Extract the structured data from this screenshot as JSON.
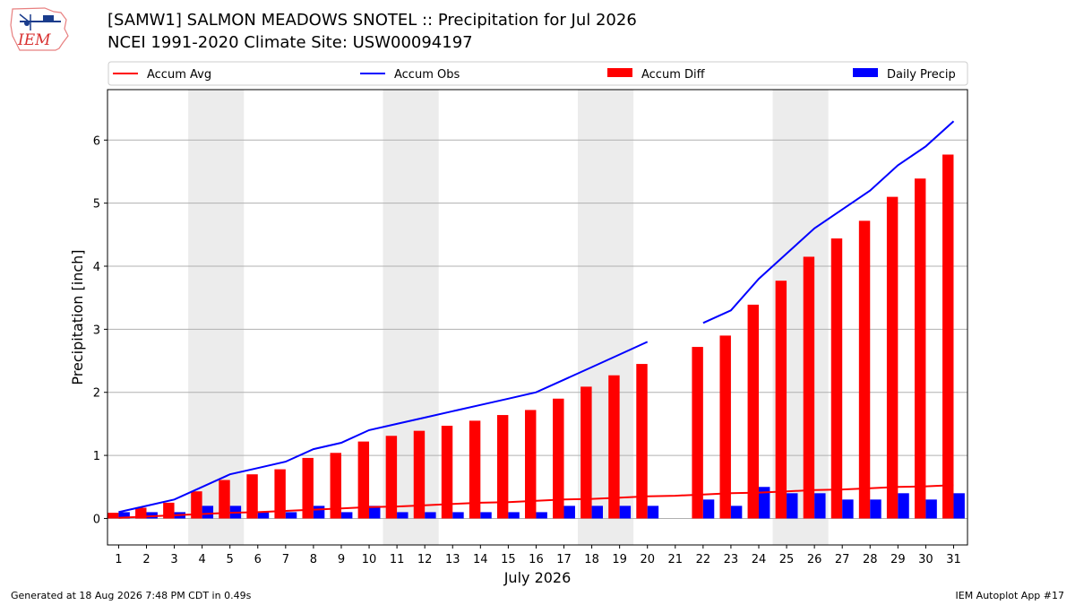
{
  "logo": {
    "text": "IEM",
    "icon": "iem-logo"
  },
  "header": {
    "title_line1": "[SAMW1] SALMON MEADOWS SNOTEL :: Precipitation for Jul 2026",
    "title_line2": "NCEI 1991-2020 Climate Site: USW00094197"
  },
  "legend": {
    "placement": "top, above plot",
    "items": [
      {
        "label": "Accum Avg",
        "kind": "line",
        "color": "#ff0000"
      },
      {
        "label": "Accum Obs",
        "kind": "line",
        "color": "#0000ff"
      },
      {
        "label": "Accum Diff",
        "kind": "patch",
        "color": "#ff0000"
      },
      {
        "label": "Daily Precip",
        "kind": "patch",
        "color": "#0000ff"
      }
    ]
  },
  "footer": {
    "left": "Generated at 18 Aug 2026 7:48 PM CDT in 0.49s",
    "right": "IEM Autoplot App #17"
  },
  "chart_data": {
    "type": "bar",
    "xlabel": "July 2026",
    "ylabel": "Precipitation [inch]",
    "ylim": [
      -0.42,
      6.8
    ],
    "xlim": [
      0.6,
      31.5
    ],
    "grid": "horizontal",
    "yticks": [
      0,
      1,
      2,
      3,
      4,
      5,
      6
    ],
    "x": [
      1,
      2,
      3,
      4,
      5,
      6,
      7,
      8,
      9,
      10,
      11,
      12,
      13,
      14,
      15,
      16,
      17,
      18,
      19,
      20,
      21,
      22,
      23,
      24,
      25,
      26,
      27,
      28,
      29,
      30,
      31
    ],
    "weekend_shading": [
      [
        3.5,
        5.5
      ],
      [
        10.5,
        12.5
      ],
      [
        17.5,
        19.5
      ],
      [
        24.5,
        26.5
      ]
    ],
    "shading_color": "#ececec",
    "series": [
      {
        "name": "Accum Avg",
        "type": "line",
        "color": "#ff0000",
        "values": [
          0.01,
          0.03,
          0.05,
          0.07,
          0.09,
          0.1,
          0.12,
          0.14,
          0.16,
          0.18,
          0.19,
          0.21,
          0.23,
          0.25,
          0.26,
          0.28,
          0.3,
          0.31,
          0.33,
          0.35,
          0.36,
          0.38,
          0.4,
          0.41,
          0.43,
          0.45,
          0.46,
          0.48,
          0.5,
          0.51,
          0.53
        ]
      },
      {
        "name": "Accum Obs",
        "type": "line",
        "color": "#0000ff",
        "values": [
          0.1,
          0.2,
          0.3,
          0.5,
          0.7,
          0.8,
          0.9,
          1.1,
          1.2,
          1.4,
          1.5,
          1.6,
          1.7,
          1.8,
          1.9,
          2.0,
          2.2,
          2.4,
          2.6,
          2.8,
          null,
          3.1,
          3.3,
          3.8,
          4.2,
          4.6,
          4.9,
          5.2,
          5.6,
          5.9,
          6.3
        ]
      },
      {
        "name": "Accum Diff",
        "type": "bar",
        "color": "#ff0000",
        "values": [
          0.09,
          0.17,
          0.25,
          0.43,
          0.61,
          0.7,
          0.78,
          0.96,
          1.04,
          1.22,
          1.31,
          1.39,
          1.47,
          1.55,
          1.64,
          1.72,
          1.9,
          2.09,
          2.27,
          2.45,
          null,
          2.72,
          2.9,
          3.39,
          3.77,
          4.15,
          4.44,
          4.72,
          5.1,
          5.39,
          5.77
        ]
      },
      {
        "name": "Daily Precip",
        "type": "bar",
        "color": "#0000ff",
        "values": [
          0.1,
          0.1,
          0.1,
          0.2,
          0.2,
          0.1,
          0.1,
          0.2,
          0.1,
          0.2,
          0.1,
          0.1,
          0.1,
          0.1,
          0.1,
          0.1,
          0.2,
          0.2,
          0.2,
          0.2,
          null,
          0.3,
          0.2,
          0.5,
          0.4,
          0.4,
          0.3,
          0.3,
          0.4,
          0.3,
          0.4
        ]
      }
    ]
  }
}
